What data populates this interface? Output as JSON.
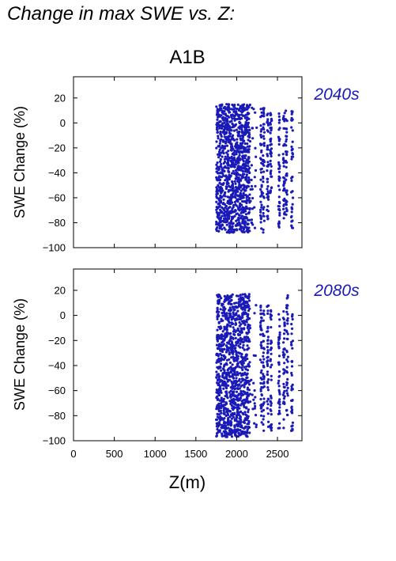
{
  "figure_title": "Change in max SWE vs. Z:",
  "scenario": "A1B",
  "point_color": "#1a1ab8",
  "chart_data": [
    {
      "type": "scatter",
      "title": "2040s",
      "xlabel": "",
      "ylabel": "SWE Change (%)",
      "xlim": [
        0,
        2800
      ],
      "ylim": [
        -100,
        37
      ],
      "x_ticks": [
        0,
        500,
        1000,
        1500,
        2000,
        2500
      ],
      "y_ticks": [
        20,
        0,
        -20,
        -40,
        -60,
        -80,
        -100
      ],
      "x_tick_labels": [],
      "y_tick_labels": [
        "20",
        "0",
        "−20",
        "−40",
        "−60",
        "−80",
        "−100"
      ],
      "dense_region": {
        "x_range": [
          1750,
          2250
        ],
        "y_range": [
          -88,
          15
        ]
      },
      "columns": [
        {
          "x": 2300,
          "y_range": [
            -85,
            15
          ]
        },
        {
          "x": 2330,
          "y_range": [
            -88,
            12
          ]
        },
        {
          "x": 2380,
          "y_range": [
            -82,
            10
          ]
        },
        {
          "x": 2420,
          "y_range": [
            -60,
            8
          ]
        },
        {
          "x": 2520,
          "y_range": [
            -85,
            12
          ]
        },
        {
          "x": 2580,
          "y_range": [
            -80,
            10
          ]
        },
        {
          "x": 2610,
          "y_range": [
            -75,
            12
          ]
        },
        {
          "x": 2680,
          "y_range": [
            -85,
            10
          ]
        }
      ]
    },
    {
      "type": "scatter",
      "title": "2080s",
      "xlabel": "Z(m)",
      "ylabel": "SWE Change (%)",
      "xlim": [
        0,
        2800
      ],
      "ylim": [
        -100,
        37
      ],
      "x_ticks": [
        0,
        500,
        1000,
        1500,
        2000,
        2500
      ],
      "y_ticks": [
        20,
        0,
        -20,
        -40,
        -60,
        -80,
        -100
      ],
      "x_tick_labels": [
        "0",
        "500",
        "1000",
        "1500",
        "2000",
        "2500"
      ],
      "y_tick_labels": [
        "20",
        "0",
        "−20",
        "−40",
        "−60",
        "−80",
        "−100"
      ],
      "dense_region": {
        "x_range": [
          1750,
          2250
        ],
        "y_range": [
          -97,
          17
        ]
      },
      "columns": [
        {
          "x": 2300,
          "y_range": [
            -95,
            10
          ]
        },
        {
          "x": 2330,
          "y_range": [
            -93,
            8
          ]
        },
        {
          "x": 2380,
          "y_range": [
            -90,
            8
          ]
        },
        {
          "x": 2420,
          "y_range": [
            -92,
            5
          ]
        },
        {
          "x": 2520,
          "y_range": [
            -95,
            2
          ]
        },
        {
          "x": 2580,
          "y_range": [
            -90,
            5
          ]
        },
        {
          "x": 2620,
          "y_range": [
            -85,
            16
          ]
        },
        {
          "x": 2680,
          "y_range": [
            -95,
            2
          ]
        }
      ]
    }
  ]
}
